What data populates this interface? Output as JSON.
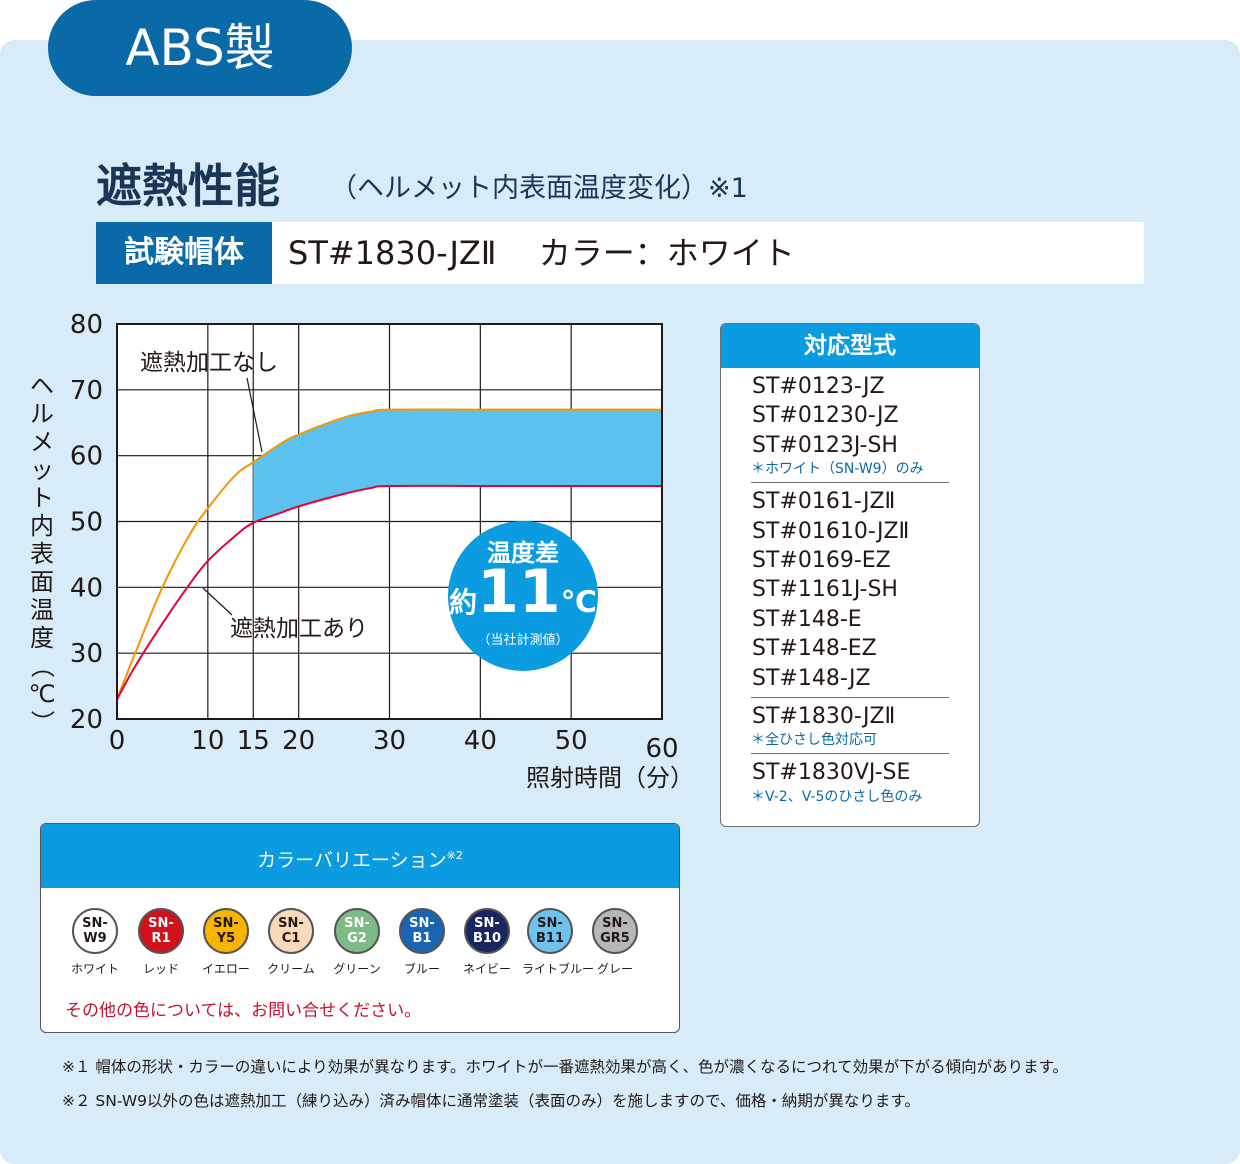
{
  "badge": "ABS製",
  "title": "遮熱性能",
  "subtitle": "（ヘルメット内表面温度変化）※1",
  "spec": {
    "label": "試験帽体",
    "value": "ST#1830-JZⅡ　 カラー：ホワイト"
  },
  "chart_data": {
    "type": "line",
    "xlabel": "照射時間（分）",
    "ylabel": "ヘルメット内表面温度（℃）",
    "xlim": [
      0,
      60
    ],
    "ylim": [
      20,
      80
    ],
    "xticks": [
      0,
      10,
      15,
      20,
      30,
      40,
      50,
      60
    ],
    "yticks": [
      20,
      30,
      40,
      50,
      60,
      70,
      80
    ],
    "grid": true,
    "series": [
      {
        "name": "遮熱加工なし",
        "color": "#f39800",
        "x": [
          0,
          2,
          5,
          8,
          10,
          13,
          15,
          18,
          20,
          25,
          28,
          30,
          40,
          50,
          60
        ],
        "y": [
          23,
          30,
          40,
          48,
          52,
          57,
          59,
          61.8,
          63.2,
          65.8,
          66.7,
          67,
          67,
          67,
          67
        ]
      },
      {
        "name": "遮熱加工あり",
        "color": "#e60033",
        "x": [
          0,
          2,
          5,
          8,
          10,
          13,
          15,
          18,
          20,
          25,
          28,
          30,
          40,
          50,
          60
        ],
        "y": [
          23,
          28,
          34.5,
          40.5,
          44,
          47.8,
          49.8,
          51.3,
          52.3,
          54.2,
          55.1,
          55.4,
          55.4,
          55.4,
          55.4
        ]
      }
    ],
    "fill_between": {
      "from_x": 15,
      "to_x": 60,
      "color": "#5bc2ef"
    },
    "annotation": {
      "line1": "温度差",
      "prefix": "約",
      "value": "11",
      "unit": "℃",
      "note": "（当社計測値）"
    }
  },
  "models": {
    "title": "対応型式",
    "groups": [
      {
        "items": [
          "ST#0123-JZ",
          "ST#01230-JZ",
          "ST#0123J-SH"
        ],
        "note": "＊ホワイト（SN-W9）のみ"
      },
      {
        "items": [
          "ST#0161-JZⅡ",
          "ST#01610-JZⅡ",
          "ST#0169-EZ",
          "ST#1161J-SH",
          "ST#148-E",
          "ST#148-EZ",
          "ST#148-JZ"
        ],
        "note": ""
      },
      {
        "items": [
          "ST#1830-JZⅡ"
        ],
        "note": "＊全ひさし色対応可"
      },
      {
        "items": [
          "ST#1830VJ-SE"
        ],
        "note": "＊V-2、V-5のひさし色のみ"
      }
    ]
  },
  "colors": {
    "title": "カラーバリエーション",
    "title_sup": "※2",
    "chips": [
      {
        "code1": "SN-",
        "code2": "W9",
        "name": "ホワイト",
        "bg": "#ffffff",
        "fg": "#231815"
      },
      {
        "code1": "SN-",
        "code2": "R1",
        "name": "レッド",
        "bg": "#d2101e",
        "fg": "#ffffff"
      },
      {
        "code1": "SN-",
        "code2": "Y5",
        "name": "イエロー",
        "bg": "#f7b400",
        "fg": "#231815"
      },
      {
        "code1": "SN-",
        "code2": "C1",
        "name": "クリーム",
        "bg": "#f8d9b9",
        "fg": "#231815"
      },
      {
        "code1": "SN-",
        "code2": "G2",
        "name": "グリーン",
        "bg": "#7dbb86",
        "fg": "#ffffff"
      },
      {
        "code1": "SN-",
        "code2": "B1",
        "name": "ブルー",
        "bg": "#1a64b3",
        "fg": "#ffffff"
      },
      {
        "code1": "SN-",
        "code2": "B10",
        "name": "ネイビー",
        "bg": "#1b2660",
        "fg": "#ffffff"
      },
      {
        "code1": "SN-",
        "code2": "B11",
        "name": "ライトブルー",
        "bg": "#6dc3ee",
        "fg": "#231815"
      },
      {
        "code1": "SN-",
        "code2": "GR5",
        "name": "グレー",
        "bg": "#b7b7b7",
        "fg": "#231815"
      }
    ],
    "footer": "その他の色については、お問い合せください。"
  },
  "notes": [
    "※１ 帽体の形状・カラーの違いにより効果が異なります。ホワイトが一番遮熱効果が高く、色が濃くなるにつれて効果が下がる傾向があります。",
    "※２ SN-W9以外の色は遮熱加工（練り込み）済み帽体に通常塗装（表面のみ）を施しますので、価格・納期が異なります。"
  ]
}
